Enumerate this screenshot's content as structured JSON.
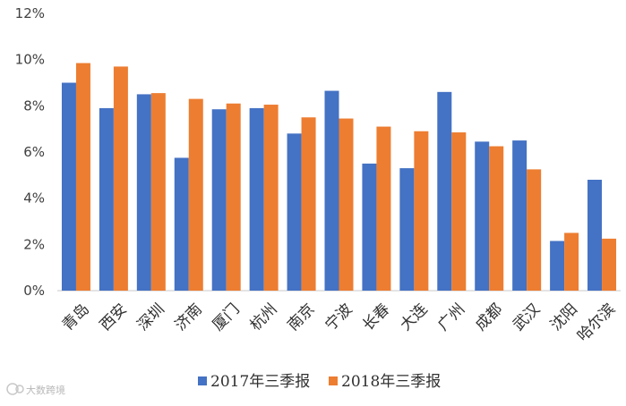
{
  "chart_data": {
    "type": "bar",
    "categories": [
      "青岛",
      "西安",
      "深圳",
      "济南",
      "厦门",
      "杭州",
      "南京",
      "宁波",
      "长春",
      "大连",
      "广州",
      "成都",
      "武汉",
      "沈阳",
      "哈尔滨"
    ],
    "series": [
      {
        "name": "2017年三季报",
        "color": "#4472C4",
        "values": [
          9.0,
          7.9,
          8.5,
          5.75,
          7.85,
          7.9,
          6.8,
          8.65,
          5.5,
          5.3,
          8.6,
          6.45,
          6.5,
          2.15,
          4.8
        ]
      },
      {
        "name": "2018年三季报",
        "color": "#ED7D31",
        "values": [
          9.85,
          9.7,
          8.55,
          8.3,
          8.1,
          8.05,
          7.5,
          7.45,
          7.1,
          6.9,
          6.85,
          6.25,
          5.25,
          2.5,
          2.25
        ]
      }
    ],
    "yticks": [
      "0%",
      "2%",
      "4%",
      "6%",
      "8%",
      "10%",
      "12%"
    ],
    "ylim": [
      0,
      12
    ],
    "grid": false,
    "legend_position": "bottom"
  },
  "watermark": {
    "text": "大数跨境"
  }
}
